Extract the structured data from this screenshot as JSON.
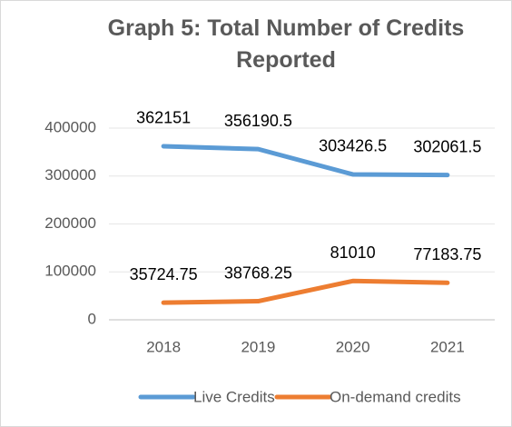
{
  "chart_data": {
    "type": "line",
    "title": "Graph 5: Total Number of Credits Reported",
    "categories": [
      "2018",
      "2019",
      "2020",
      "2021"
    ],
    "series": [
      {
        "name": "Live Credits",
        "color": "#5b9bd5",
        "values": [
          362151,
          356190.5,
          303426.5,
          302061.5
        ]
      },
      {
        "name": "On-demand credits",
        "color": "#ed7d31",
        "values": [
          35724.75,
          38768.25,
          81010,
          77183.75
        ]
      }
    ],
    "ylim": [
      0,
      400000
    ],
    "yticks": [
      0,
      100000,
      200000,
      300000,
      400000
    ],
    "grid": true,
    "legend": "bottom"
  }
}
